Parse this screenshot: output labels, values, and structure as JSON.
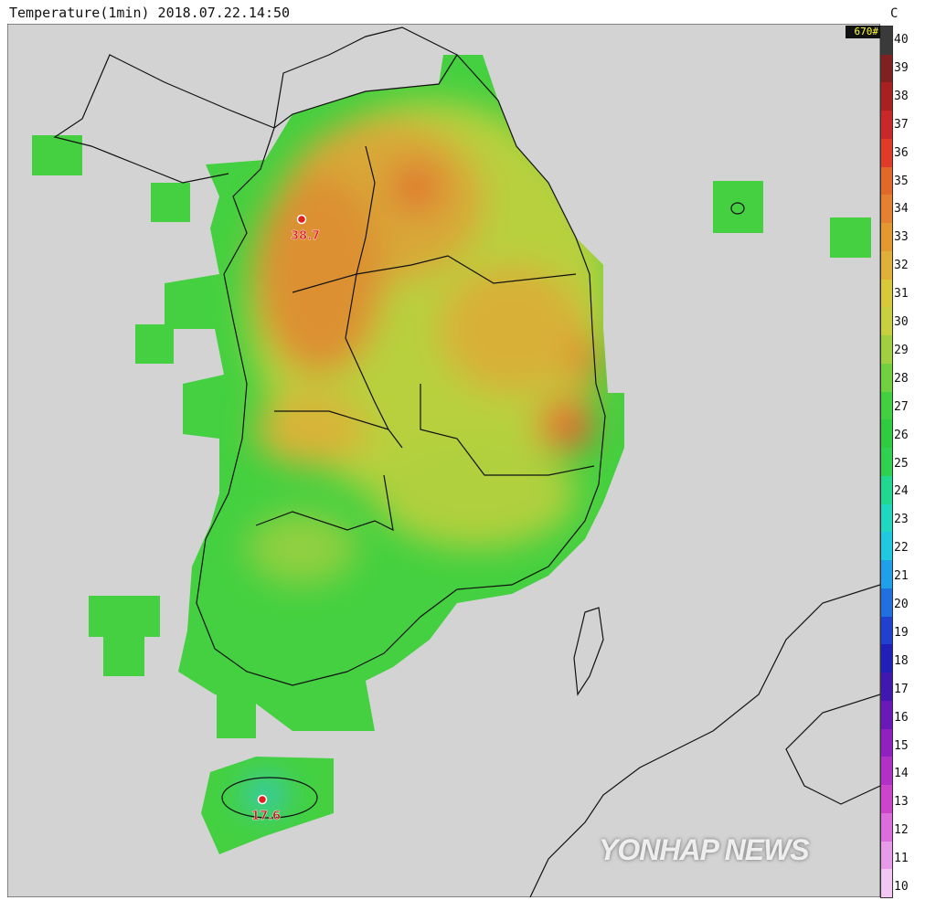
{
  "title": "Temperature(1min) 2018.07.22.14:50",
  "unit": "C",
  "station_count": "670#",
  "colorbar": {
    "ticks": [
      "40",
      "39",
      "38",
      "37",
      "36",
      "35",
      "34",
      "33",
      "32",
      "31",
      "30",
      "29",
      "28",
      "27",
      "26",
      "25",
      "24",
      "23",
      "22",
      "21",
      "20",
      "19",
      "18",
      "17",
      "16",
      "15",
      "14",
      "13",
      "12",
      "11",
      "10"
    ],
    "colors": [
      "#f2c8f2",
      "#e89be8",
      "#dc6ddc",
      "#cc44cc",
      "#b030c8",
      "#9020c0",
      "#6a18b8",
      "#4018b0",
      "#2020b8",
      "#2040d0",
      "#2070e0",
      "#20a0e8",
      "#20c8e0",
      "#20d8c0",
      "#20d890",
      "#30d050",
      "#30cc40",
      "#40d040",
      "#70d040",
      "#a0d040",
      "#c8d040",
      "#d8c83c",
      "#e0b038",
      "#e49830",
      "#e48030",
      "#e06828",
      "#e03a28",
      "#c82828",
      "#a82020",
      "#802020",
      "#3a3a3a"
    ]
  },
  "stations": [
    {
      "label": "38.7",
      "type": "max"
    },
    {
      "label": "17.6",
      "type": "min"
    }
  ],
  "watermark": "YONHAP NEWS"
}
